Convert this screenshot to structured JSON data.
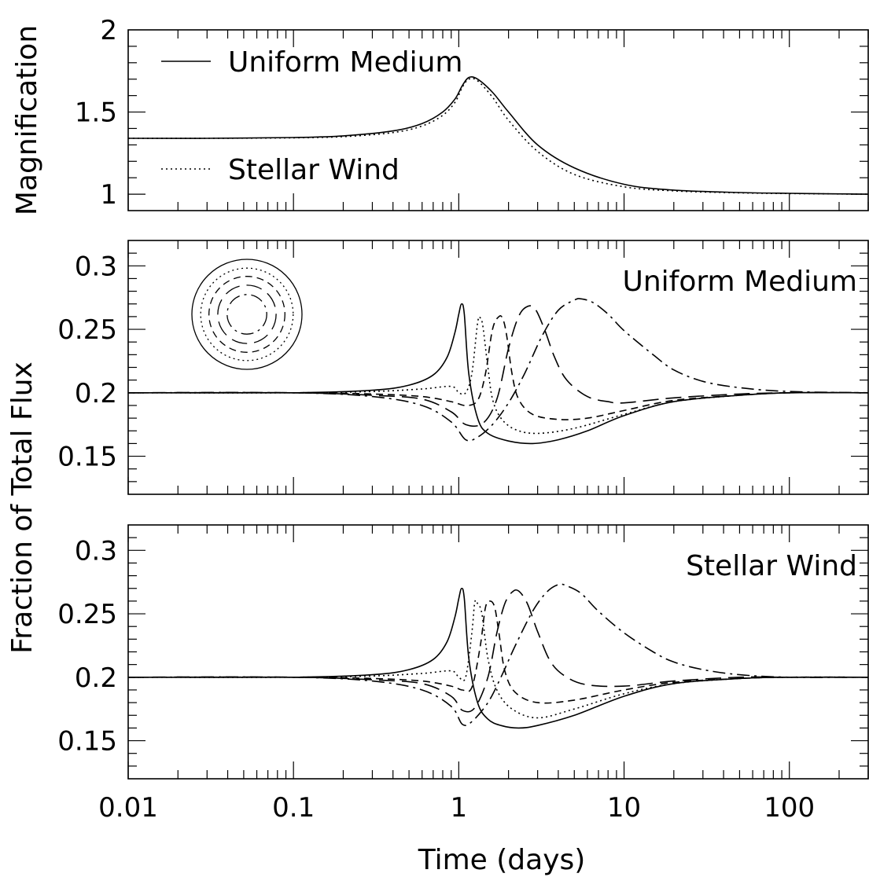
{
  "chart_data": [
    {
      "type": "line",
      "panel": "top",
      "ylabel": "Magnification",
      "xscale": "log",
      "xlim": [
        0.01,
        300
      ],
      "ylim": [
        0.9,
        2.0
      ],
      "yticks": [
        "1",
        "1.5",
        "2"
      ],
      "legend": {
        "placement": "top-left"
      },
      "series": [
        {
          "name": "Uniform Medium",
          "style": "solid",
          "x": [
            0.01,
            0.03,
            0.1,
            0.2,
            0.4,
            0.6,
            0.8,
            0.95,
            1.05,
            1.15,
            1.3,
            1.6,
            2,
            3,
            5,
            10,
            20,
            50,
            100,
            300
          ],
          "y": [
            1.34,
            1.34,
            1.345,
            1.355,
            1.385,
            1.43,
            1.5,
            1.58,
            1.66,
            1.71,
            1.7,
            1.62,
            1.5,
            1.3,
            1.16,
            1.06,
            1.025,
            1.01,
            1.005,
            1.0
          ]
        },
        {
          "name": "Stellar Wind",
          "style": "dotted",
          "x": [
            0.01,
            0.03,
            0.1,
            0.2,
            0.4,
            0.6,
            0.8,
            0.95,
            1.05,
            1.15,
            1.3,
            1.6,
            2,
            3,
            5,
            10,
            20,
            50,
            100,
            300
          ],
          "y": [
            1.34,
            1.34,
            1.343,
            1.35,
            1.375,
            1.415,
            1.48,
            1.56,
            1.65,
            1.7,
            1.69,
            1.59,
            1.45,
            1.26,
            1.12,
            1.045,
            1.02,
            1.008,
            1.004,
            1.0
          ]
        }
      ]
    },
    {
      "type": "line",
      "panel": "middle",
      "label": "Uniform Medium",
      "xscale": "log",
      "xlim": [
        0.01,
        300
      ],
      "ylim": [
        0.12,
        0.32
      ],
      "yticks": [
        "0.15",
        "0.2",
        "0.25",
        "0.3"
      ],
      "series": [
        {
          "style": "solid",
          "x": [
            0.01,
            0.1,
            0.3,
            0.5,
            0.7,
            0.85,
            0.95,
            1.0,
            1.04,
            1.08,
            1.15,
            1.3,
            1.5,
            2,
            2.8,
            4,
            6,
            10,
            20,
            50,
            100,
            300
          ],
          "y": [
            0.2,
            0.2,
            0.202,
            0.206,
            0.214,
            0.228,
            0.248,
            0.262,
            0.27,
            0.262,
            0.215,
            0.18,
            0.168,
            0.162,
            0.16,
            0.163,
            0.17,
            0.182,
            0.193,
            0.198,
            0.2,
            0.2
          ]
        },
        {
          "style": "dotted",
          "x": [
            0.01,
            0.1,
            0.3,
            0.6,
            0.9,
            1.0,
            1.1,
            1.2,
            1.3,
            1.35,
            1.4,
            1.5,
            1.6,
            1.8,
            2.2,
            3,
            5,
            10,
            20,
            50,
            100,
            300
          ],
          "y": [
            0.2,
            0.2,
            0.201,
            0.203,
            0.205,
            0.2,
            0.2,
            0.215,
            0.255,
            0.259,
            0.252,
            0.22,
            0.195,
            0.18,
            0.171,
            0.168,
            0.172,
            0.183,
            0.193,
            0.198,
            0.2,
            0.2
          ]
        },
        {
          "style": "dashed",
          "x": [
            0.01,
            0.1,
            0.3,
            0.6,
            0.9,
            1.1,
            1.3,
            1.45,
            1.6,
            1.75,
            1.85,
            1.95,
            2.1,
            2.3,
            2.8,
            4,
            6,
            10,
            20,
            50,
            100,
            300
          ],
          "y": [
            0.2,
            0.2,
            0.199,
            0.197,
            0.193,
            0.19,
            0.194,
            0.215,
            0.25,
            0.26,
            0.258,
            0.245,
            0.215,
            0.195,
            0.183,
            0.179,
            0.18,
            0.186,
            0.194,
            0.198,
            0.2,
            0.2
          ]
        },
        {
          "style": "long-dash",
          "x": [
            0.01,
            0.1,
            0.3,
            0.6,
            0.9,
            1.1,
            1.4,
            1.7,
            2.0,
            2.3,
            2.6,
            2.9,
            3.3,
            3.8,
            4.5,
            6,
            8,
            10,
            20,
            50,
            100,
            300
          ],
          "y": [
            0.2,
            0.2,
            0.198,
            0.195,
            0.185,
            0.175,
            0.176,
            0.195,
            0.235,
            0.26,
            0.268,
            0.266,
            0.25,
            0.228,
            0.21,
            0.197,
            0.193,
            0.192,
            0.196,
            0.199,
            0.2,
            0.2
          ]
        },
        {
          "style": "dash-dot",
          "x": [
            0.01,
            0.1,
            0.3,
            0.6,
            0.9,
            1.1,
            1.3,
            1.6,
            2.0,
            2.5,
            3.2,
            4.0,
            5.0,
            5.5,
            6.5,
            8,
            10,
            15,
            20,
            30,
            50,
            100,
            300
          ],
          "y": [
            0.2,
            0.2,
            0.197,
            0.19,
            0.177,
            0.163,
            0.165,
            0.175,
            0.192,
            0.215,
            0.245,
            0.265,
            0.273,
            0.274,
            0.271,
            0.262,
            0.249,
            0.23,
            0.218,
            0.209,
            0.204,
            0.201,
            0.2
          ]
        }
      ]
    },
    {
      "type": "line",
      "panel": "bottom",
      "label": "Stellar Wind",
      "xlabel": "Time (days)",
      "xscale": "log",
      "xlim": [
        0.01,
        300
      ],
      "xticks": [
        "0.01",
        "0.1",
        "1",
        "10",
        "100"
      ],
      "ylim": [
        0.12,
        0.32
      ],
      "yticks": [
        "0.15",
        "0.2",
        "0.25",
        "0.3"
      ],
      "series": [
        {
          "style": "solid",
          "x": [
            0.01,
            0.1,
            0.3,
            0.5,
            0.7,
            0.85,
            0.95,
            1.0,
            1.04,
            1.08,
            1.15,
            1.3,
            1.5,
            1.8,
            2.3,
            3,
            5,
            10,
            20,
            50,
            100,
            300
          ],
          "y": [
            0.2,
            0.2,
            0.202,
            0.206,
            0.214,
            0.228,
            0.248,
            0.262,
            0.27,
            0.262,
            0.215,
            0.18,
            0.167,
            0.162,
            0.16,
            0.162,
            0.17,
            0.185,
            0.195,
            0.199,
            0.2,
            0.2
          ]
        },
        {
          "style": "dotted",
          "x": [
            0.01,
            0.1,
            0.3,
            0.6,
            0.9,
            1.0,
            1.1,
            1.2,
            1.25,
            1.3,
            1.38,
            1.5,
            1.7,
            2.1,
            3,
            5,
            10,
            20,
            50,
            100,
            300
          ],
          "y": [
            0.2,
            0.2,
            0.201,
            0.203,
            0.205,
            0.2,
            0.2,
            0.235,
            0.259,
            0.258,
            0.25,
            0.215,
            0.19,
            0.175,
            0.168,
            0.175,
            0.187,
            0.195,
            0.199,
            0.2,
            0.2
          ]
        },
        {
          "style": "dashed",
          "x": [
            0.01,
            0.1,
            0.3,
            0.6,
            0.9,
            1.05,
            1.2,
            1.35,
            1.45,
            1.55,
            1.65,
            1.75,
            1.9,
            2.2,
            3,
            5,
            10,
            20,
            50,
            100,
            300
          ],
          "y": [
            0.2,
            0.2,
            0.199,
            0.197,
            0.193,
            0.19,
            0.192,
            0.225,
            0.255,
            0.26,
            0.255,
            0.235,
            0.205,
            0.188,
            0.18,
            0.182,
            0.19,
            0.196,
            0.199,
            0.2,
            0.2
          ]
        },
        {
          "style": "long-dash",
          "x": [
            0.01,
            0.1,
            0.3,
            0.6,
            0.9,
            1.05,
            1.25,
            1.5,
            1.7,
            1.9,
            2.1,
            2.3,
            2.6,
            3.0,
            3.6,
            4.5,
            6,
            10,
            20,
            50,
            100,
            300
          ],
          "y": [
            0.2,
            0.2,
            0.198,
            0.195,
            0.185,
            0.174,
            0.176,
            0.2,
            0.235,
            0.258,
            0.267,
            0.268,
            0.258,
            0.236,
            0.212,
            0.2,
            0.194,
            0.193,
            0.197,
            0.2,
            0.2,
            0.2
          ]
        },
        {
          "style": "dash-dot",
          "x": [
            0.01,
            0.1,
            0.3,
            0.6,
            0.9,
            1.05,
            1.2,
            1.5,
            1.8,
            2.2,
            2.8,
            3.4,
            4.0,
            4.5,
            5.5,
            7,
            10,
            15,
            20,
            30,
            50,
            100,
            300
          ],
          "y": [
            0.2,
            0.2,
            0.197,
            0.19,
            0.177,
            0.163,
            0.165,
            0.18,
            0.2,
            0.225,
            0.252,
            0.267,
            0.273,
            0.272,
            0.266,
            0.252,
            0.235,
            0.22,
            0.212,
            0.206,
            0.202,
            0.2,
            0.2
          ]
        }
      ]
    }
  ],
  "inset": {
    "description": "concentric rings",
    "rings": [
      {
        "style": "solid",
        "r": 1.0
      },
      {
        "style": "dotted",
        "r": 0.84
      },
      {
        "style": "dashed",
        "r": 0.69
      },
      {
        "style": "long-dash",
        "r": 0.53
      },
      {
        "style": "dash-dot",
        "r": 0.36
      }
    ]
  },
  "shared_ylabel": "Fraction of Total Flux"
}
